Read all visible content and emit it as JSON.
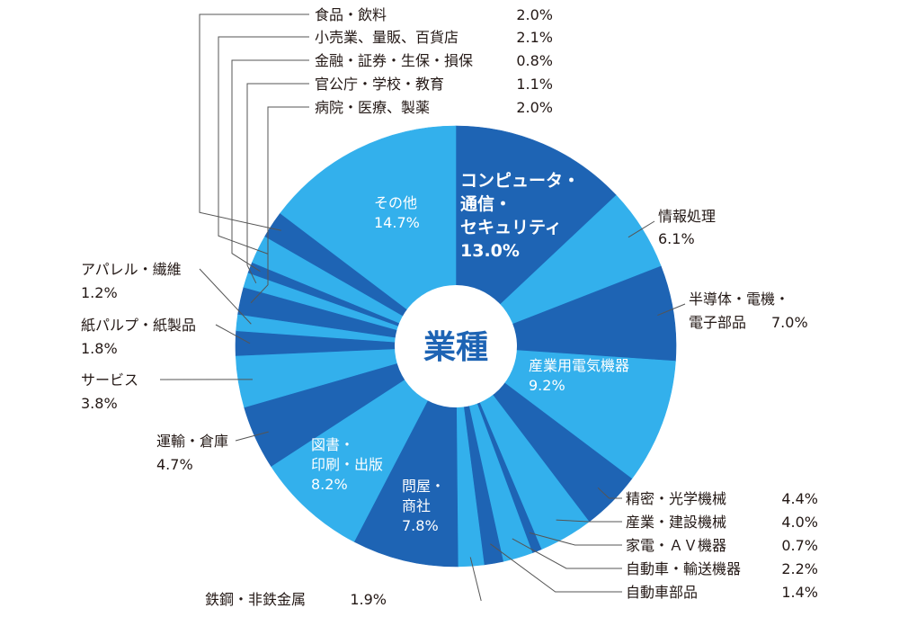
{
  "chart_data": {
    "type": "pie",
    "donut": true,
    "center_label": "業種",
    "colors": {
      "dark": "#1e64b4",
      "light": "#33b0ec"
    },
    "slices": [
      {
        "key": "computer",
        "lines": [
          "コンピュータ・",
          "通信・",
          "セキュリティ"
        ],
        "value": 13.0,
        "value_text": "13.0%",
        "color": "dark"
      },
      {
        "key": "info",
        "lines": [
          "情報処理"
        ],
        "value": 6.1,
        "value_text": "6.1%",
        "color": "light"
      },
      {
        "key": "semi",
        "lines": [
          "半導体・電機・",
          "電子部品"
        ],
        "value": 7.0,
        "value_text": "7.0%",
        "color": "dark"
      },
      {
        "key": "industrial-elec",
        "lines": [
          "産業用電気機器"
        ],
        "value": 9.2,
        "value_text": "9.2%",
        "color": "light"
      },
      {
        "key": "precision",
        "lines": [
          "精密・光学機械"
        ],
        "value": 4.4,
        "value_text": "4.4%",
        "color": "dark"
      },
      {
        "key": "construction",
        "lines": [
          "産業・建設機械"
        ],
        "value": 4.0,
        "value_text": "4.0%",
        "color": "light"
      },
      {
        "key": "av",
        "lines": [
          "家電・ＡＶ機器"
        ],
        "value": 0.7,
        "value_text": "0.7%",
        "color": "dark"
      },
      {
        "key": "transport-eq",
        "lines": [
          "自動車・輸送機器"
        ],
        "value": 2.2,
        "value_text": "2.2%",
        "color": "light"
      },
      {
        "key": "auto-parts",
        "lines": [
          "自動車部品"
        ],
        "value": 1.4,
        "value_text": "1.4%",
        "color": "dark"
      },
      {
        "key": "steel",
        "lines": [
          "鉄鋼・非鉄金属"
        ],
        "value": 1.9,
        "value_text": "1.9%",
        "color": "light"
      },
      {
        "key": "wholesale",
        "lines": [
          "問屋・",
          "商社"
        ],
        "value": 7.8,
        "value_text": "7.8%",
        "color": "dark"
      },
      {
        "key": "printing",
        "lines": [
          "図書・",
          "印刷・出版"
        ],
        "value": 8.2,
        "value_text": "8.2%",
        "color": "light"
      },
      {
        "key": "logistics",
        "lines": [
          "運輸・倉庫"
        ],
        "value": 4.7,
        "value_text": "4.7%",
        "color": "dark"
      },
      {
        "key": "service",
        "lines": [
          "サービス"
        ],
        "value": 3.8,
        "value_text": "3.8%",
        "color": "light"
      },
      {
        "key": "paper",
        "lines": [
          "紙パルプ・紙製品"
        ],
        "value": 1.8,
        "value_text": "1.8%",
        "color": "dark"
      },
      {
        "key": "apparel",
        "lines": [
          "アパレル・繊維"
        ],
        "value": 1.2,
        "value_text": "1.2%",
        "color": "light"
      },
      {
        "key": "medical",
        "lines": [
          "病院・医療、製薬"
        ],
        "value": 2.0,
        "value_text": "2.0%",
        "color": "dark"
      },
      {
        "key": "public",
        "lines": [
          "官公庁・学校・教育"
        ],
        "value": 1.1,
        "value_text": "1.1%",
        "color": "light"
      },
      {
        "key": "finance",
        "lines": [
          "金融・証券・生保・損保"
        ],
        "value": 0.8,
        "value_text": "0.8%",
        "color": "dark"
      },
      {
        "key": "retail",
        "lines": [
          "小売業、量販、百貨店"
        ],
        "value": 2.1,
        "value_text": "2.1%",
        "color": "light"
      },
      {
        "key": "food",
        "lines": [
          "食品・飲料"
        ],
        "value": 2.0,
        "value_text": "2.0%",
        "color": "dark"
      },
      {
        "key": "other",
        "lines": [
          "その他"
        ],
        "value": 14.7,
        "value_text": "14.7%",
        "color": "light"
      }
    ]
  }
}
